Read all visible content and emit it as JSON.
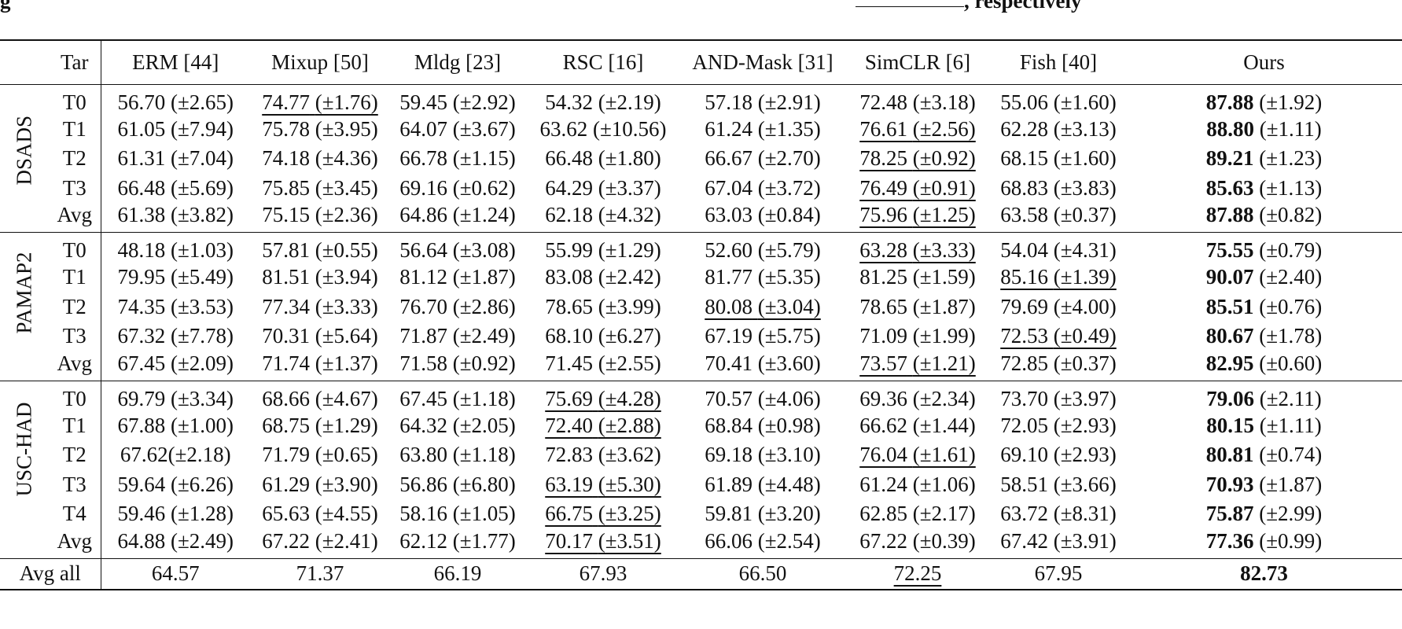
{
  "caption_fragment": {
    "left": "g",
    "right": ", respectively"
  },
  "header": [
    "Tar",
    "ERM [44]",
    "Mixup [50]",
    "Mldg [23]",
    "RSC [16]",
    "AND-Mask [31]",
    "SimCLR [6]",
    "Fish [40]",
    "Ours"
  ],
  "groups": [
    {
      "name": "DSADS",
      "rows": [
        {
          "tar": "T0",
          "cells": [
            {
              "v": "56.70",
              "s": "(±2.65)",
              "st": ""
            },
            {
              "v": "74.77",
              "s": "(±1.76)",
              "st": "u"
            },
            {
              "v": "59.45",
              "s": "(±2.92)",
              "st": ""
            },
            {
              "v": "54.32",
              "s": "(±2.19)",
              "st": ""
            },
            {
              "v": "57.18",
              "s": "(±2.91)",
              "st": ""
            },
            {
              "v": "72.48",
              "s": "(±3.18)",
              "st": ""
            },
            {
              "v": "55.06",
              "s": "(±1.60)",
              "st": ""
            },
            {
              "v": "87.88",
              "s": "(±1.92)",
              "st": "b"
            }
          ]
        },
        {
          "tar": "T1",
          "cells": [
            {
              "v": "61.05",
              "s": "(±7.94)",
              "st": ""
            },
            {
              "v": "75.78",
              "s": "(±3.95)",
              "st": ""
            },
            {
              "v": "64.07",
              "s": "(±3.67)",
              "st": ""
            },
            {
              "v": "63.62",
              "s": "(±10.56)",
              "st": ""
            },
            {
              "v": "61.24",
              "s": "(±1.35)",
              "st": ""
            },
            {
              "v": "76.61",
              "s": "(±2.56)",
              "st": "u"
            },
            {
              "v": "62.28",
              "s": "(±3.13)",
              "st": ""
            },
            {
              "v": "88.80",
              "s": "(±1.11)",
              "st": "b"
            }
          ]
        },
        {
          "tar": "T2",
          "cells": [
            {
              "v": "61.31",
              "s": "(±7.04)",
              "st": ""
            },
            {
              "v": "74.18",
              "s": "(±4.36)",
              "st": ""
            },
            {
              "v": "66.78",
              "s": "(±1.15)",
              "st": ""
            },
            {
              "v": "66.48",
              "s": "(±1.80)",
              "st": ""
            },
            {
              "v": "66.67",
              "s": "(±2.70)",
              "st": ""
            },
            {
              "v": "78.25",
              "s": "(±0.92)",
              "st": "u"
            },
            {
              "v": "68.15",
              "s": "(±1.60)",
              "st": ""
            },
            {
              "v": "89.21",
              "s": "(±1.23)",
              "st": "b"
            }
          ]
        },
        {
          "tar": "T3",
          "cells": [
            {
              "v": "66.48",
              "s": "(±5.69)",
              "st": ""
            },
            {
              "v": "75.85",
              "s": "(±3.45)",
              "st": ""
            },
            {
              "v": "69.16",
              "s": "(±0.62)",
              "st": ""
            },
            {
              "v": "64.29",
              "s": "(±3.37)",
              "st": ""
            },
            {
              "v": "67.04",
              "s": "(±3.72)",
              "st": ""
            },
            {
              "v": "76.49",
              "s": "(±0.91)",
              "st": "u"
            },
            {
              "v": "68.83",
              "s": "(±3.83)",
              "st": ""
            },
            {
              "v": "85.63",
              "s": "(±1.13)",
              "st": "b"
            }
          ]
        },
        {
          "tar": "Avg",
          "cells": [
            {
              "v": "61.38",
              "s": "(±3.82)",
              "st": ""
            },
            {
              "v": "75.15",
              "s": "(±2.36)",
              "st": ""
            },
            {
              "v": "64.86",
              "s": "(±1.24)",
              "st": ""
            },
            {
              "v": "62.18",
              "s": "(±4.32)",
              "st": ""
            },
            {
              "v": "63.03",
              "s": "(±0.84)",
              "st": ""
            },
            {
              "v": "75.96",
              "s": "(±1.25)",
              "st": "u"
            },
            {
              "v": "63.58",
              "s": "(±0.37)",
              "st": ""
            },
            {
              "v": "87.88",
              "s": "(±0.82)",
              "st": "b"
            }
          ]
        }
      ]
    },
    {
      "name": "PAMAP2",
      "rows": [
        {
          "tar": "T0",
          "cells": [
            {
              "v": "48.18",
              "s": "(±1.03)",
              "st": ""
            },
            {
              "v": "57.81",
              "s": "(±0.55)",
              "st": ""
            },
            {
              "v": "56.64",
              "s": "(±3.08)",
              "st": ""
            },
            {
              "v": "55.99",
              "s": "(±1.29)",
              "st": ""
            },
            {
              "v": "52.60",
              "s": "(±5.79)",
              "st": ""
            },
            {
              "v": "63.28",
              "s": "(±3.33)",
              "st": "u"
            },
            {
              "v": "54.04",
              "s": "(±4.31)",
              "st": ""
            },
            {
              "v": "75.55",
              "s": "(±0.79)",
              "st": "b"
            }
          ]
        },
        {
          "tar": "T1",
          "cells": [
            {
              "v": "79.95",
              "s": "(±5.49)",
              "st": ""
            },
            {
              "v": "81.51",
              "s": "(±3.94)",
              "st": ""
            },
            {
              "v": "81.12",
              "s": "(±1.87)",
              "st": ""
            },
            {
              "v": "83.08",
              "s": "(±2.42)",
              "st": ""
            },
            {
              "v": "81.77",
              "s": "(±5.35)",
              "st": ""
            },
            {
              "v": "81.25",
              "s": "(±1.59)",
              "st": ""
            },
            {
              "v": "85.16",
              "s": "(±1.39)",
              "st": "u"
            },
            {
              "v": "90.07",
              "s": "(±2.40)",
              "st": "b"
            }
          ]
        },
        {
          "tar": "T2",
          "cells": [
            {
              "v": "74.35",
              "s": "(±3.53)",
              "st": ""
            },
            {
              "v": "77.34",
              "s": "(±3.33)",
              "st": ""
            },
            {
              "v": "76.70",
              "s": "(±2.86)",
              "st": ""
            },
            {
              "v": "78.65",
              "s": "(±3.99)",
              "st": ""
            },
            {
              "v": "80.08",
              "s": "(±3.04)",
              "st": "u"
            },
            {
              "v": "78.65",
              "s": "(±1.87)",
              "st": ""
            },
            {
              "v": "79.69",
              "s": "(±4.00)",
              "st": ""
            },
            {
              "v": "85.51",
              "s": "(±0.76)",
              "st": "b"
            }
          ]
        },
        {
          "tar": "T3",
          "cells": [
            {
              "v": "67.32",
              "s": "(±7.78)",
              "st": ""
            },
            {
              "v": "70.31",
              "s": "(±5.64)",
              "st": ""
            },
            {
              "v": "71.87",
              "s": "(±2.49)",
              "st": ""
            },
            {
              "v": "68.10",
              "s": "(±6.27)",
              "st": ""
            },
            {
              "v": "67.19",
              "s": "(±5.75)",
              "st": ""
            },
            {
              "v": "71.09",
              "s": "(±1.99)",
              "st": ""
            },
            {
              "v": "72.53",
              "s": "(±0.49)",
              "st": "u"
            },
            {
              "v": "80.67",
              "s": "(±1.78)",
              "st": "b"
            }
          ]
        },
        {
          "tar": "Avg",
          "cells": [
            {
              "v": "67.45",
              "s": "(±2.09)",
              "st": ""
            },
            {
              "v": "71.74",
              "s": "(±1.37)",
              "st": ""
            },
            {
              "v": "71.58",
              "s": "(±0.92)",
              "st": ""
            },
            {
              "v": "71.45",
              "s": "(±2.55)",
              "st": ""
            },
            {
              "v": "70.41",
              "s": "(±3.60)",
              "st": ""
            },
            {
              "v": "73.57",
              "s": "(±1.21)",
              "st": "u"
            },
            {
              "v": "72.85",
              "s": "(±0.37)",
              "st": ""
            },
            {
              "v": "82.95",
              "s": "(±0.60)",
              "st": "b"
            }
          ]
        }
      ]
    },
    {
      "name": "USC-HAD",
      "rows": [
        {
          "tar": "T0",
          "cells": [
            {
              "v": "69.79",
              "s": "(±3.34)",
              "st": ""
            },
            {
              "v": "68.66",
              "s": "(±4.67)",
              "st": ""
            },
            {
              "v": "67.45",
              "s": "(±1.18)",
              "st": ""
            },
            {
              "v": "75.69",
              "s": "(±4.28)",
              "st": "u"
            },
            {
              "v": "70.57",
              "s": "(±4.06)",
              "st": ""
            },
            {
              "v": "69.36",
              "s": "(±2.34)",
              "st": ""
            },
            {
              "v": "73.70",
              "s": "(±3.97)",
              "st": ""
            },
            {
              "v": "79.06",
              "s": "(±2.11)",
              "st": "b"
            }
          ]
        },
        {
          "tar": "T1",
          "cells": [
            {
              "v": "67.88",
              "s": "(±1.00)",
              "st": ""
            },
            {
              "v": "68.75",
              "s": "(±1.29)",
              "st": ""
            },
            {
              "v": "64.32",
              "s": "(±2.05)",
              "st": ""
            },
            {
              "v": "72.40",
              "s": "(±2.88)",
              "st": "u"
            },
            {
              "v": "68.84",
              "s": "(±0.98)",
              "st": ""
            },
            {
              "v": "66.62",
              "s": "(±1.44)",
              "st": ""
            },
            {
              "v": "72.05",
              "s": "(±2.93)",
              "st": ""
            },
            {
              "v": "80.15",
              "s": "(±1.11)",
              "st": "b"
            }
          ]
        },
        {
          "tar": "T2",
          "cells": [
            {
              "v": "67.62",
              "s": "(±2.18)",
              "st": "",
              "nospace": true
            },
            {
              "v": "71.79",
              "s": "(±0.65)",
              "st": ""
            },
            {
              "v": "63.80",
              "s": "(±1.18)",
              "st": ""
            },
            {
              "v": "72.83",
              "s": "(±3.62)",
              "st": ""
            },
            {
              "v": "69.18",
              "s": "(±3.10)",
              "st": ""
            },
            {
              "v": "76.04",
              "s": "(±1.61)",
              "st": "u"
            },
            {
              "v": "69.10",
              "s": "(±2.93)",
              "st": ""
            },
            {
              "v": "80.81",
              "s": "(±0.74)",
              "st": "b"
            }
          ]
        },
        {
          "tar": "T3",
          "cells": [
            {
              "v": "59.64",
              "s": "(±6.26)",
              "st": ""
            },
            {
              "v": "61.29",
              "s": "(±3.90)",
              "st": ""
            },
            {
              "v": "56.86",
              "s": "(±6.80)",
              "st": ""
            },
            {
              "v": "63.19",
              "s": "(±5.30)",
              "st": "u"
            },
            {
              "v": "61.89",
              "s": "(±4.48)",
              "st": ""
            },
            {
              "v": "61.24",
              "s": "(±1.06)",
              "st": ""
            },
            {
              "v": "58.51",
              "s": "(±3.66)",
              "st": ""
            },
            {
              "v": "70.93",
              "s": "(±1.87)",
              "st": "b"
            }
          ]
        },
        {
          "tar": "T4",
          "cells": [
            {
              "v": "59.46",
              "s": "(±1.28)",
              "st": ""
            },
            {
              "v": "65.63",
              "s": "(±4.55)",
              "st": ""
            },
            {
              "v": "58.16",
              "s": "(±1.05)",
              "st": ""
            },
            {
              "v": "66.75",
              "s": "(±3.25)",
              "st": "u"
            },
            {
              "v": "59.81",
              "s": "(±3.20)",
              "st": ""
            },
            {
              "v": "62.85",
              "s": "(±2.17)",
              "st": ""
            },
            {
              "v": "63.72",
              "s": "(±8.31)",
              "st": ""
            },
            {
              "v": "75.87",
              "s": "(±2.99)",
              "st": "b"
            }
          ]
        },
        {
          "tar": "Avg",
          "cells": [
            {
              "v": "64.88",
              "s": "(±2.49)",
              "st": ""
            },
            {
              "v": "67.22",
              "s": "(±2.41)",
              "st": ""
            },
            {
              "v": "62.12",
              "s": "(±1.77)",
              "st": ""
            },
            {
              "v": "70.17",
              "s": "(±3.51)",
              "st": "u"
            },
            {
              "v": "66.06",
              "s": "(±2.54)",
              "st": ""
            },
            {
              "v": "67.22",
              "s": "(±0.39)",
              "st": ""
            },
            {
              "v": "67.42",
              "s": "(±3.91)",
              "st": ""
            },
            {
              "v": "77.36",
              "s": "(±0.99)",
              "st": "b"
            }
          ]
        }
      ]
    }
  ],
  "avg_all": {
    "label": "Avg all",
    "values": [
      {
        "v": "64.57",
        "st": ""
      },
      {
        "v": "71.37",
        "st": ""
      },
      {
        "v": "66.19",
        "st": ""
      },
      {
        "v": "67.93",
        "st": ""
      },
      {
        "v": "66.50",
        "st": ""
      },
      {
        "v": "72.25",
        "st": "u"
      },
      {
        "v": "67.95",
        "st": ""
      },
      {
        "v": "82.73",
        "st": "b"
      }
    ]
  }
}
